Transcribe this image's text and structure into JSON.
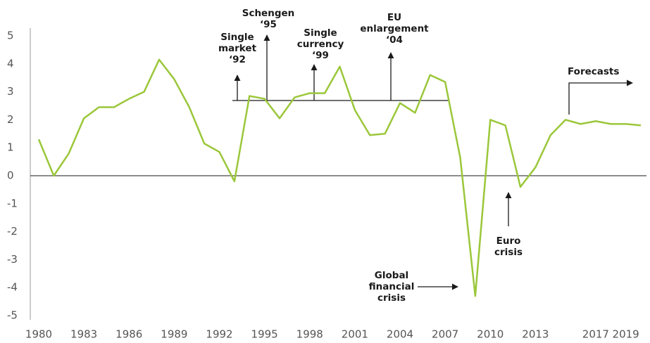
{
  "chart_data": {
    "type": "line",
    "x": [
      1980,
      1981,
      1982,
      1983,
      1984,
      1985,
      1986,
      1987,
      1988,
      1989,
      1990,
      1991,
      1992,
      1993,
      1994,
      1995,
      1996,
      1997,
      1998,
      1999,
      2000,
      2001,
      2002,
      2003,
      2004,
      2005,
      2006,
      2007,
      2008,
      2009,
      2010,
      2011,
      2012,
      2013,
      2014,
      2015,
      2016,
      2017,
      2018,
      2019,
      2020
    ],
    "series": [
      {
        "color": "#9bc73a",
        "values": [
          1.3,
          0.0,
          0.8,
          2.05,
          2.45,
          2.45,
          2.75,
          3.0,
          4.15,
          3.45,
          2.45,
          1.15,
          0.85,
          -0.2,
          2.85,
          2.75,
          2.05,
          2.8,
          2.95,
          2.95,
          3.9,
          2.35,
          1.45,
          1.5,
          2.6,
          2.25,
          3.6,
          3.35,
          0.65,
          -4.3,
          2.0,
          1.8,
          -0.4,
          0.3,
          1.45,
          2.0,
          1.85,
          1.95,
          1.85,
          1.85,
          1.8
        ]
      }
    ],
    "xlim": [
      1980,
      2020
    ],
    "xticks": [
      1980,
      1983,
      1986,
      1989,
      1992,
      1995,
      1998,
      2001,
      2004,
      2007,
      2010,
      2013,
      2017,
      2019
    ],
    "ylim": [
      -5,
      5
    ],
    "yticks": [
      -5,
      -4,
      -3,
      -2,
      -1,
      0,
      1,
      2,
      3,
      4,
      5
    ],
    "annotations": [
      {
        "lines": [
          "Single",
          "market",
          "‘92"
        ]
      },
      {
        "lines": [
          "Schengen",
          "‘95"
        ]
      },
      {
        "lines": [
          "Single",
          "currency",
          "‘99"
        ]
      },
      {
        "lines": [
          "EU",
          "enlargement",
          "‘04"
        ]
      },
      {
        "lines": [
          "Forecasts"
        ]
      },
      {
        "lines": [
          "Euro",
          "crisis"
        ]
      },
      {
        "lines": [
          "Global",
          "financial",
          "crisis"
        ]
      }
    ]
  }
}
